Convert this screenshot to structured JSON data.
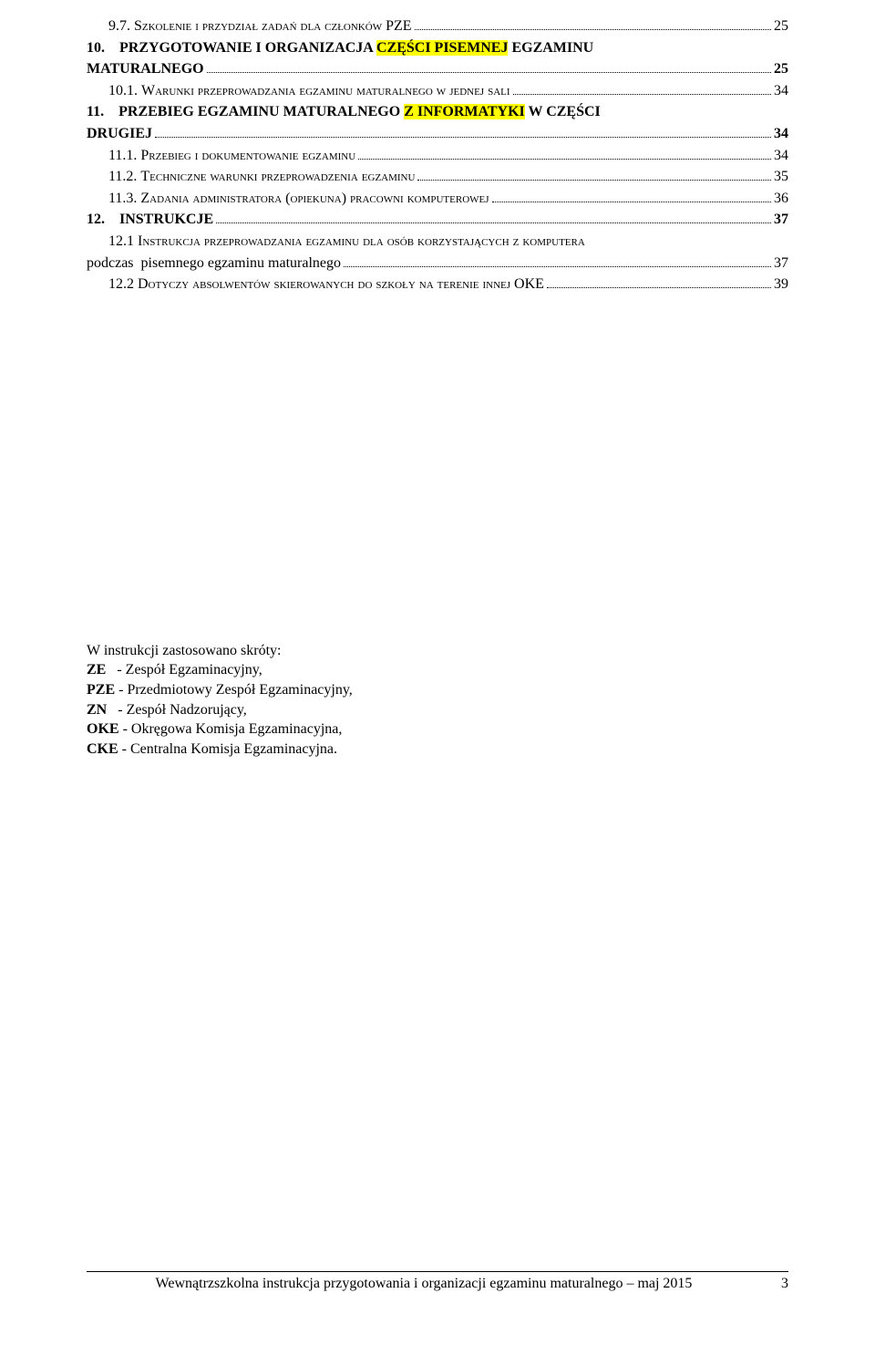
{
  "toc": [
    {
      "num": "9.7.",
      "text_sc": "Szkolenie i przydział zadań dla członków PZE",
      "page": "25",
      "bold": false,
      "indent": 1
    },
    {
      "num": "10.",
      "text_plain_pre": "PRZYGOTOWANIE I ORGANIZACJA ",
      "text_hl": "CZĘŚCI PISEMNEJ",
      "text_plain_post": " EGZAMINU",
      "wrap_line2": "MATURALNEGO",
      "page": "25",
      "bold": true,
      "indent": 0,
      "multiline": true
    },
    {
      "num": "10.1.",
      "text_sc": "Warunki przeprowadzania egzaminu maturalnego w jednej sali",
      "page": "34",
      "bold": false,
      "indent": 1
    },
    {
      "num": "11.",
      "text_plain_pre": "PRZEBIEG EGZAMINU MATURALNEGO ",
      "text_hl": "Z INFORMATYKI",
      "text_plain_post": " W CZĘŚCI",
      "wrap_line2": "DRUGIEJ",
      "page": "34",
      "bold": true,
      "indent": 0,
      "multiline": true
    },
    {
      "num": "11.1.",
      "text_sc": "Przebieg i dokumentowanie egzaminu",
      "page": "34",
      "bold": false,
      "indent": 1
    },
    {
      "num": "11.2.",
      "text_sc": "Techniczne warunki przeprowadzenia egzaminu",
      "page": "35",
      "bold": false,
      "indent": 1
    },
    {
      "num": "11.3.",
      "text_sc": "Zadania administratora (opiekuna) pracowni komputerowej",
      "page": "36",
      "bold": false,
      "indent": 1
    },
    {
      "num": "12.",
      "text_plain_pre": "INSTRUKCJE",
      "page": "37",
      "bold": true,
      "indent": 0
    },
    {
      "num": "12.1",
      "text_sc": "Instrukcja przeprowadzania egzaminu dla osób korzystających z komputera",
      "wrap_line2_sc": "podczas  pisemnego egzaminu maturalnego",
      "page": "37",
      "bold": false,
      "indent": 1,
      "multiline": true
    },
    {
      "num": "12.2",
      "text_sc": "Dotyczy absolwentów skierowanych do szkoły na terenie innej OKE",
      "page": "39",
      "bold": false,
      "indent": 1
    }
  ],
  "abbrev": {
    "heading": "W instrukcji zastosowano skróty:",
    "items": [
      {
        "code": "ZE",
        "sep": "   - ",
        "desc": "Zespół Egzaminacyjny,"
      },
      {
        "code": "PZE",
        "sep": " - ",
        "desc": "Przedmiotowy Zespół Egzaminacyjny,"
      },
      {
        "code": "ZN",
        "sep": "   - ",
        "desc": "Zespół Nadzorujący,"
      },
      {
        "code": "OKE",
        "sep": " - ",
        "desc": "Okręgowa Komisja Egzaminacyjna,"
      },
      {
        "code": "CKE",
        "sep": " - ",
        "desc": "Centralna Komisja Egzaminacyjna."
      }
    ]
  },
  "footer": {
    "text": "Wewnątrzszkolna instrukcja przygotowania i organizacji egzaminu maturalnego – maj 2015",
    "page": "3"
  }
}
